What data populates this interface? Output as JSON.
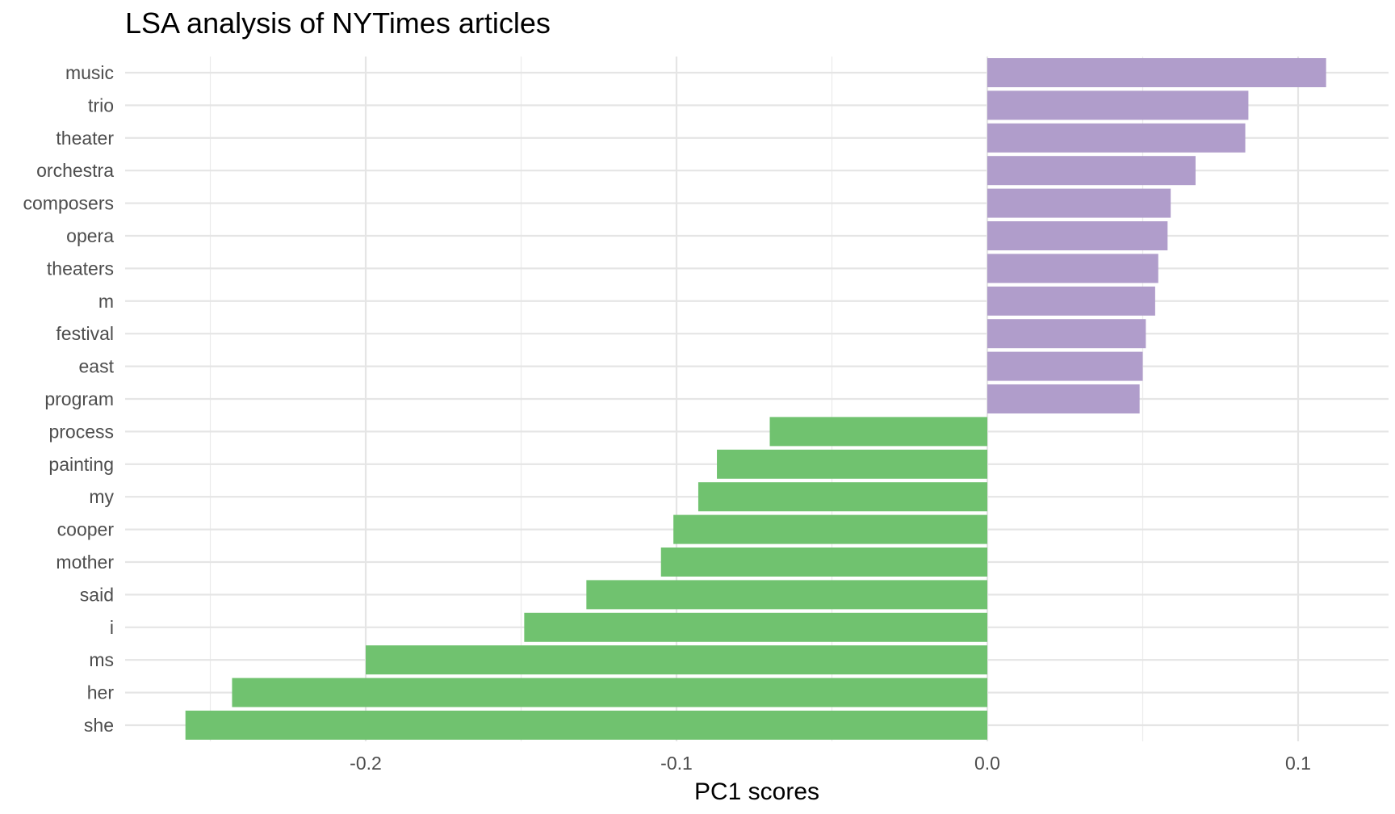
{
  "chart_data": {
    "type": "bar",
    "orientation": "horizontal",
    "title": "LSA analysis of NYTimes articles",
    "xlabel": "PC1 scores",
    "ylabel": "",
    "xlim": [
      -0.28,
      0.13
    ],
    "x_ticks": [
      -0.2,
      -0.1,
      0.0,
      0.1
    ],
    "x_tick_labels": [
      "-0.2",
      "-0.1",
      "0.0",
      "0.1"
    ],
    "grid": true,
    "legend": "none",
    "colors": {
      "positive": "#b09dcb",
      "negative": "#70c26f"
    },
    "categories": [
      "music",
      "trio",
      "theater",
      "orchestra",
      "composers",
      "opera",
      "theaters",
      "m",
      "festival",
      "east",
      "program",
      "process",
      "painting",
      "my",
      "cooper",
      "mother",
      "said",
      "i",
      "ms",
      "her",
      "she"
    ],
    "values": [
      0.109,
      0.084,
      0.083,
      0.067,
      0.059,
      0.058,
      0.055,
      0.054,
      0.051,
      0.05,
      0.049,
      -0.07,
      -0.087,
      -0.093,
      -0.101,
      -0.105,
      -0.129,
      -0.149,
      -0.2,
      -0.243,
      -0.258
    ]
  }
}
